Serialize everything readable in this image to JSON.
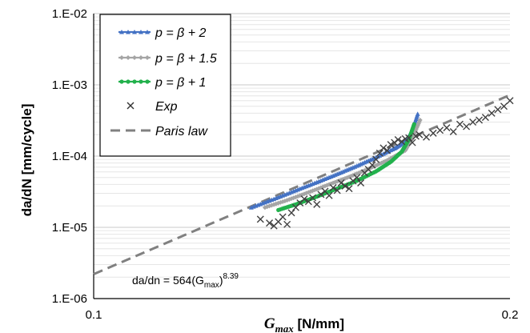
{
  "chart_data": {
    "type": "line",
    "x_scale": "log",
    "y_scale": "log",
    "xlim": [
      0.1,
      0.2
    ],
    "ylim": [
      1e-06,
      0.01
    ],
    "x_ticks": [
      "0.1",
      "0.2"
    ],
    "y_ticks": [
      "1.E-06",
      "1.E-05",
      "1.E-04",
      "1.E-03",
      "1.E-02"
    ],
    "xlabel_main": "G",
    "xlabel_sub": "max",
    "xlabel_rest": " [N/mm]",
    "ylabel": "da/dN [mm/cycle]",
    "grid": "horizontal minor and major",
    "legend_position": "top-left",
    "annotation": {
      "prefix": "da/dn = 564(G",
      "sub": "max",
      "suffix": ")",
      "exponent": "8.39"
    },
    "series": [
      {
        "name": "p = β + 2",
        "color": "#4472C4",
        "marker": "triangle",
        "x": [
          0.13,
          0.135,
          0.14,
          0.145,
          0.15,
          0.155,
          0.16,
          0.165,
          0.168,
          0.17,
          0.1715
        ],
        "y": [
          1.9e-05,
          2.5e-05,
          3.3e-05,
          4.3e-05,
          5.6e-05,
          7.3e-05,
          9.6e-05,
          0.000128,
          0.00016,
          0.00023,
          0.00039
        ]
      },
      {
        "name": "p = β + 1.5",
        "color": "#A5A5A5",
        "marker": "diamond",
        "x": [
          0.133,
          0.138,
          0.143,
          0.148,
          0.153,
          0.158,
          0.163,
          0.168,
          0.17,
          0.1722
        ],
        "y": [
          1.9e-05,
          2.4e-05,
          3.1e-05,
          4e-05,
          5.1e-05,
          6.6e-05,
          8.7e-05,
          0.00012,
          0.00018,
          0.00032
        ]
      },
      {
        "name": "p = β + 1",
        "color": "#22B14C",
        "marker": "circle",
        "x": [
          0.136,
          0.14,
          0.145,
          0.15,
          0.155,
          0.16,
          0.164,
          0.167,
          0.169,
          0.1705
        ],
        "y": [
          1.75e-05,
          2.1e-05,
          2.7e-05,
          3.5e-05,
          4.5e-05,
          6.1e-05,
          8.3e-05,
          0.000115,
          0.00017,
          0.00028
        ]
      },
      {
        "name": "Exp",
        "color": "#404040",
        "marker": "x",
        "x": [
          0.132,
          0.134,
          0.135,
          0.136,
          0.137,
          0.138,
          0.139,
          0.14,
          0.141,
          0.142,
          0.143,
          0.144,
          0.145,
          0.146,
          0.147,
          0.148,
          0.149,
          0.15,
          0.151,
          0.152,
          0.153,
          0.154,
          0.155,
          0.156,
          0.157,
          0.158,
          0.159,
          0.16,
          0.161,
          0.162,
          0.163,
          0.164,
          0.165,
          0.166,
          0.167,
          0.168,
          0.169,
          0.17,
          0.171,
          0.172,
          0.174,
          0.176,
          0.178,
          0.18,
          0.182,
          0.184,
          0.186,
          0.188,
          0.19,
          0.192,
          0.194,
          0.196,
          0.198,
          0.2
        ],
        "y": [
          1.3e-05,
          1.15e-05,
          1.05e-05,
          1.2e-05,
          1.4e-05,
          1.1e-05,
          1.6e-05,
          1.9e-05,
          2.2e-05,
          2.5e-05,
          2.3e-05,
          2.6e-05,
          2.1e-05,
          2.9e-05,
          3.2e-05,
          2.8e-05,
          3.6e-05,
          3.3e-05,
          4.2e-05,
          3.8e-05,
          3.5e-05,
          4.5e-05,
          5e-05,
          4.2e-05,
          5.8e-05,
          6.5e-05,
          7.5e-05,
          9e-05,
          0.00011,
          0.00013,
          0.00012,
          0.000145,
          0.000155,
          0.00017,
          0.00016,
          0.000175,
          0.00018,
          0.000155,
          0.00019,
          0.0002,
          0.000185,
          0.00021,
          0.00023,
          0.00025,
          0.00022,
          0.00028,
          0.00026,
          0.0003,
          0.00032,
          0.00035,
          0.0004,
          0.00045,
          0.0005,
          0.0006
        ]
      },
      {
        "name": "Paris law",
        "color": "#808080",
        "line": "dashed",
        "x": [
          0.1,
          0.2
        ],
        "y": [
          2.2e-06,
          0.00072
        ]
      }
    ]
  }
}
